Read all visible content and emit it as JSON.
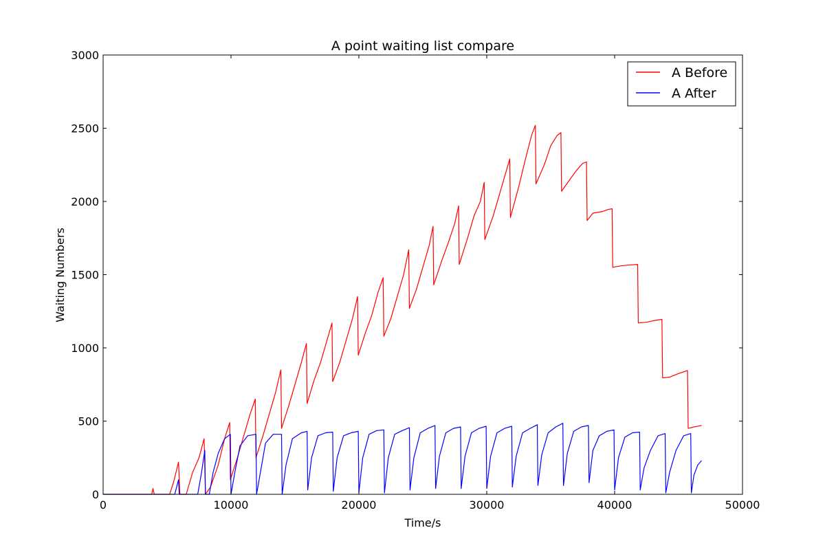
{
  "chart_data": {
    "type": "line",
    "title": "A point waiting list compare",
    "xlabel": "Time/s",
    "ylabel": "Waiting Numbers",
    "xlim": [
      0,
      50000
    ],
    "ylim": [
      0,
      3000
    ],
    "xticks": [
      "0",
      "10000",
      "20000",
      "30000",
      "40000",
      "50000"
    ],
    "yticks": [
      "0",
      "500",
      "1000",
      "1500",
      "2000",
      "2500",
      "3000"
    ],
    "grid": false,
    "legend": "top-right",
    "series": [
      {
        "name": "A Before",
        "color": "#ff0000",
        "points": [
          [
            0,
            0
          ],
          [
            3800,
            0
          ],
          [
            3900,
            40
          ],
          [
            4000,
            0
          ],
          [
            5200,
            0
          ],
          [
            5500,
            80
          ],
          [
            5900,
            220
          ],
          [
            6000,
            0
          ],
          [
            6500,
            0
          ],
          [
            7000,
            150
          ],
          [
            7500,
            250
          ],
          [
            7900,
            380
          ],
          [
            8000,
            0
          ],
          [
            8400,
            50
          ],
          [
            9000,
            200
          ],
          [
            9500,
            380
          ],
          [
            9900,
            490
          ],
          [
            9950,
            100
          ],
          [
            10500,
            250
          ],
          [
            11000,
            400
          ],
          [
            11500,
            550
          ],
          [
            11900,
            650
          ],
          [
            11950,
            250
          ],
          [
            12500,
            400
          ],
          [
            13000,
            550
          ],
          [
            13500,
            700
          ],
          [
            13900,
            850
          ],
          [
            13950,
            450
          ],
          [
            14500,
            600
          ],
          [
            15000,
            750
          ],
          [
            15500,
            900
          ],
          [
            15900,
            1030
          ],
          [
            15950,
            620
          ],
          [
            16500,
            780
          ],
          [
            17000,
            900
          ],
          [
            17500,
            1050
          ],
          [
            17900,
            1170
          ],
          [
            17950,
            770
          ],
          [
            18500,
            900
          ],
          [
            19000,
            1050
          ],
          [
            19500,
            1200
          ],
          [
            19900,
            1350
          ],
          [
            19950,
            950
          ],
          [
            20500,
            1100
          ],
          [
            21000,
            1220
          ],
          [
            21500,
            1380
          ],
          [
            21900,
            1480
          ],
          [
            21950,
            1080
          ],
          [
            22500,
            1200
          ],
          [
            23000,
            1350
          ],
          [
            23500,
            1500
          ],
          [
            23900,
            1670
          ],
          [
            23950,
            1270
          ],
          [
            24500,
            1400
          ],
          [
            25000,
            1550
          ],
          [
            25500,
            1700
          ],
          [
            25800,
            1830
          ],
          [
            25850,
            1430
          ],
          [
            26500,
            1600
          ],
          [
            27000,
            1720
          ],
          [
            27500,
            1850
          ],
          [
            27800,
            1970
          ],
          [
            27850,
            1570
          ],
          [
            28500,
            1750
          ],
          [
            29000,
            1900
          ],
          [
            29500,
            2000
          ],
          [
            29800,
            2130
          ],
          [
            29850,
            1740
          ],
          [
            30500,
            1900
          ],
          [
            31000,
            2050
          ],
          [
            31500,
            2200
          ],
          [
            31800,
            2290
          ],
          [
            31850,
            1890
          ],
          [
            32500,
            2100
          ],
          [
            33000,
            2280
          ],
          [
            33500,
            2450
          ],
          [
            33800,
            2520
          ],
          [
            33850,
            2120
          ],
          [
            34500,
            2250
          ],
          [
            35000,
            2380
          ],
          [
            35500,
            2450
          ],
          [
            35800,
            2470
          ],
          [
            35850,
            2070
          ],
          [
            36500,
            2150
          ],
          [
            37000,
            2210
          ],
          [
            37500,
            2260
          ],
          [
            37800,
            2270
          ],
          [
            37850,
            1870
          ],
          [
            38300,
            1920
          ],
          [
            39000,
            1930
          ],
          [
            39500,
            1945
          ],
          [
            39800,
            1950
          ],
          [
            39850,
            1550
          ],
          [
            40500,
            1560
          ],
          [
            41000,
            1565
          ],
          [
            41800,
            1570
          ],
          [
            41850,
            1170
          ],
          [
            42500,
            1175
          ],
          [
            43000,
            1185
          ],
          [
            43700,
            1195
          ],
          [
            43750,
            795
          ],
          [
            44300,
            800
          ],
          [
            45000,
            825
          ],
          [
            45700,
            845
          ],
          [
            45750,
            450
          ],
          [
            46200,
            460
          ],
          [
            46800,
            470
          ]
        ]
      },
      {
        "name": "A After",
        "color": "#0000ff",
        "points": [
          [
            0,
            0
          ],
          [
            5600,
            0
          ],
          [
            5900,
            100
          ],
          [
            5950,
            0
          ],
          [
            7400,
            0
          ],
          [
            7700,
            150
          ],
          [
            7950,
            300
          ],
          [
            8000,
            0
          ],
          [
            8300,
            0
          ],
          [
            8600,
            150
          ],
          [
            9000,
            280
          ],
          [
            9500,
            380
          ],
          [
            9950,
            410
          ],
          [
            10000,
            0
          ],
          [
            10300,
            150
          ],
          [
            10700,
            330
          ],
          [
            11300,
            400
          ],
          [
            11950,
            410
          ],
          [
            12000,
            0
          ],
          [
            12300,
            150
          ],
          [
            12700,
            350
          ],
          [
            13300,
            410
          ],
          [
            13950,
            410
          ],
          [
            14000,
            0
          ],
          [
            14300,
            200
          ],
          [
            14800,
            380
          ],
          [
            15500,
            420
          ],
          [
            15950,
            430
          ],
          [
            16000,
            30
          ],
          [
            16300,
            250
          ],
          [
            16800,
            400
          ],
          [
            17400,
            420
          ],
          [
            17950,
            425
          ],
          [
            18000,
            20
          ],
          [
            18300,
            250
          ],
          [
            18800,
            400
          ],
          [
            19400,
            420
          ],
          [
            19950,
            430
          ],
          [
            20000,
            10
          ],
          [
            20300,
            250
          ],
          [
            20800,
            410
          ],
          [
            21400,
            435
          ],
          [
            21950,
            440
          ],
          [
            22000,
            10
          ],
          [
            22300,
            250
          ],
          [
            22800,
            410
          ],
          [
            23400,
            435
          ],
          [
            23950,
            455
          ],
          [
            24000,
            30
          ],
          [
            24300,
            250
          ],
          [
            24800,
            420
          ],
          [
            25400,
            450
          ],
          [
            25950,
            470
          ],
          [
            26000,
            40
          ],
          [
            26300,
            260
          ],
          [
            26800,
            420
          ],
          [
            27400,
            450
          ],
          [
            27950,
            460
          ],
          [
            28000,
            40
          ],
          [
            28300,
            260
          ],
          [
            28800,
            420
          ],
          [
            29400,
            450
          ],
          [
            29950,
            465
          ],
          [
            30000,
            40
          ],
          [
            30300,
            260
          ],
          [
            30800,
            420
          ],
          [
            31400,
            450
          ],
          [
            31950,
            465
          ],
          [
            32000,
            50
          ],
          [
            32300,
            260
          ],
          [
            32800,
            420
          ],
          [
            33400,
            450
          ],
          [
            33950,
            475
          ],
          [
            34000,
            60
          ],
          [
            34300,
            270
          ],
          [
            34800,
            420
          ],
          [
            35400,
            460
          ],
          [
            35950,
            485
          ],
          [
            36000,
            60
          ],
          [
            36300,
            280
          ],
          [
            36800,
            430
          ],
          [
            37400,
            460
          ],
          [
            37950,
            470
          ],
          [
            38000,
            80
          ],
          [
            38300,
            300
          ],
          [
            38800,
            400
          ],
          [
            39400,
            430
          ],
          [
            39950,
            440
          ],
          [
            40000,
            30
          ],
          [
            40300,
            250
          ],
          [
            40800,
            390
          ],
          [
            41400,
            420
          ],
          [
            41950,
            425
          ],
          [
            42000,
            30
          ],
          [
            42300,
            180
          ],
          [
            42800,
            300
          ],
          [
            43400,
            400
          ],
          [
            43950,
            415
          ],
          [
            44000,
            10
          ],
          [
            44300,
            150
          ],
          [
            44800,
            300
          ],
          [
            45400,
            400
          ],
          [
            45950,
            415
          ],
          [
            46000,
            10
          ],
          [
            46200,
            130
          ],
          [
            46500,
            200
          ],
          [
            46800,
            230
          ]
        ]
      }
    ]
  }
}
